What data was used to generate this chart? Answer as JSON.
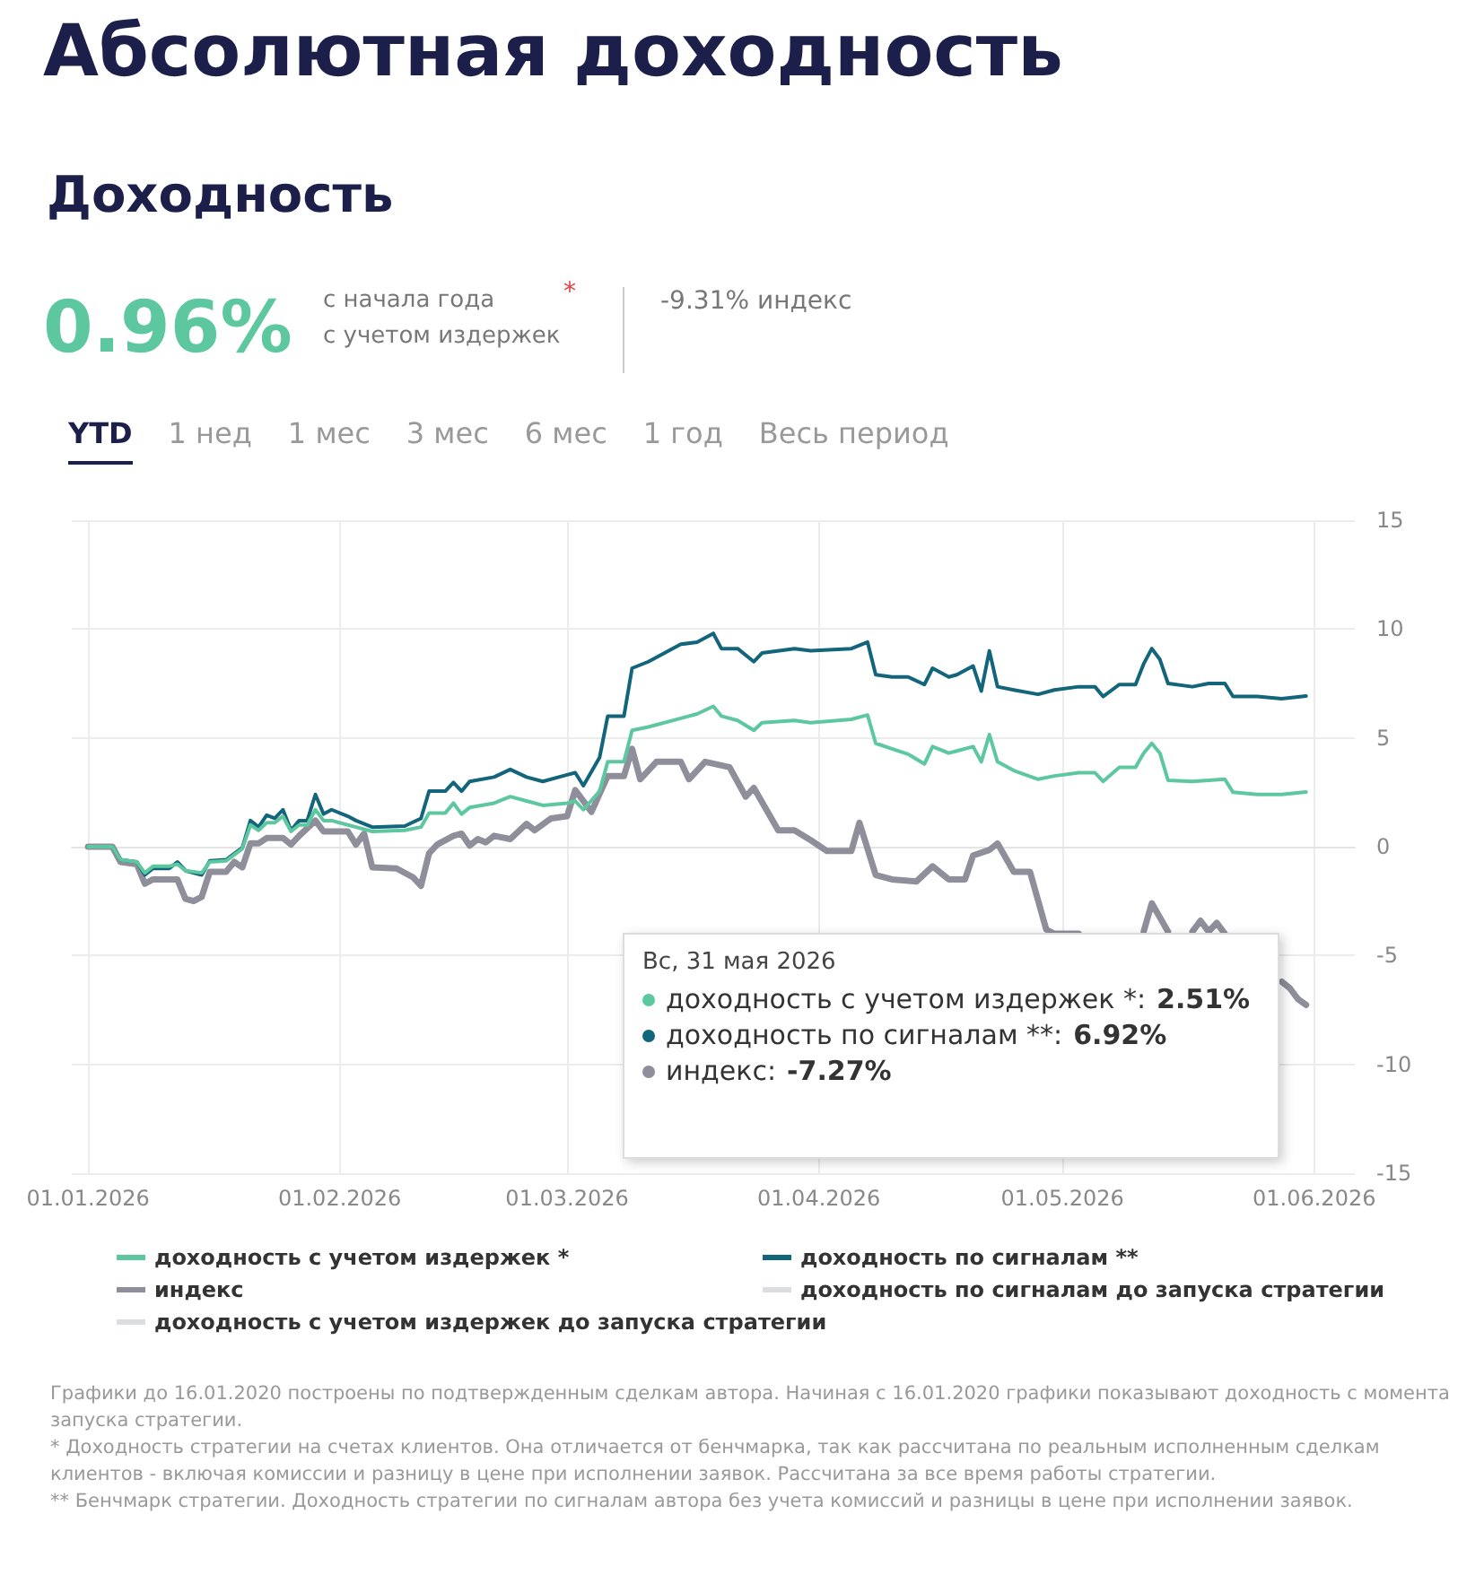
{
  "chart_data": {
    "type": "line",
    "title": "Абсолютная доходность",
    "subtitle": "Доходность",
    "annotations": [
      "0.96%",
      "с начала года",
      "с учетом издержек",
      "*",
      "-9.31% индекс",
      "YTD",
      "1 нед",
      "1 мес",
      "3 мес",
      "6 мес",
      "1 год",
      "Весь период",
      "Вс, 31 мая 2026",
      "доходность с учетом издержек *:",
      "2.51%",
      "доходность по сигналам **:",
      "6.92%",
      "индекс:",
      "-7.27%",
      "Графики до 16.01.2020 построены по подтвержденным сделкам автора. Начиная с 16.01.2020 графики показывают доходность с момента запуска стратегии.",
      "* Доходность стратегии на счетах клиентов. Она отличается от бенчмарка, так как рассчитана по реальным исполненным сделкам клиентов - включая комиссии и разницу в цене при исполнении заявок. Рассчитана за все время работы стратегии.",
      "** Бенчмарк стратегии. Доходность стратегии по сигналам автора без учета комиссий и разницы в цене при исполнении заявок."
    ],
    "x": [
      "2026-01-01",
      "2026-01-04",
      "2026-01-05",
      "2026-01-07",
      "2026-01-08",
      "2026-01-09",
      "2026-01-11",
      "2026-01-12",
      "2026-01-13",
      "2026-01-15",
      "2026-01-16",
      "2026-01-18",
      "2026-01-20",
      "2026-01-21",
      "2026-01-22",
      "2026-01-23",
      "2026-01-24",
      "2026-01-25",
      "2026-01-26",
      "2026-01-27",
      "2026-01-28",
      "2026-01-29",
      "2026-01-30",
      "2026-01-31",
      "2026-02-02",
      "2026-02-03",
      "2026-02-05",
      "2026-02-09",
      "2026-02-11",
      "2026-02-12",
      "2026-02-14",
      "2026-02-15",
      "2026-02-16",
      "2026-02-17",
      "2026-02-20",
      "2026-02-22",
      "2026-02-24",
      "2026-02-26",
      "2026-03-01",
      "2026-03-02",
      "2026-03-03",
      "2026-03-05",
      "2026-03-06",
      "2026-03-08",
      "2026-03-09",
      "2026-03-11",
      "2026-03-15",
      "2026-03-17",
      "2026-03-19",
      "2026-03-20",
      "2026-03-22",
      "2026-03-24",
      "2026-03-25",
      "2026-03-29",
      "2026-03-31",
      "2026-04-05",
      "2026-04-07",
      "2026-04-08",
      "2026-04-10",
      "2026-04-12",
      "2026-04-14",
      "2026-04-15",
      "2026-04-17",
      "2026-04-18",
      "2026-04-20",
      "2026-04-21",
      "2026-04-22",
      "2026-04-23",
      "2026-04-25",
      "2026-04-28",
      "2026-04-30",
      "2026-05-03",
      "2026-05-05",
      "2026-05-06",
      "2026-05-08",
      "2026-05-10",
      "2026-05-11",
      "2026-05-12",
      "2026-05-13",
      "2026-05-14",
      "2026-05-17",
      "2026-05-19",
      "2026-05-21",
      "2026-05-22",
      "2026-05-25",
      "2026-05-28",
      "2026-05-31"
    ],
    "series": [
      {
        "name": "доходность с учетом издержек *",
        "color": "#5dc89f",
        "values": [
          0,
          0,
          -0.6,
          -0.7,
          -1.2,
          -0.9,
          -0.9,
          -0.8,
          -1.1,
          -1.2,
          -0.7,
          -0.65,
          -0.1,
          1.0,
          0.75,
          1.1,
          1.1,
          1.4,
          0.7,
          1.0,
          1.0,
          1.7,
          1.2,
          1.2,
          1.0,
          0.9,
          0.7,
          0.75,
          0.9,
          1.55,
          1.55,
          2.0,
          1.5,
          1.8,
          2.0,
          2.3,
          2.1,
          1.9,
          2.0,
          2.1,
          1.7,
          2.55,
          3.9,
          3.9,
          5.35,
          5.5,
          5.9,
          6.1,
          6.45,
          6.0,
          5.8,
          5.35,
          5.7,
          5.8,
          5.7,
          5.85,
          6.05,
          4.75,
          4.5,
          4.25,
          3.8,
          4.6,
          4.3,
          4.4,
          4.6,
          3.9,
          5.15,
          3.9,
          3.5,
          3.1,
          3.25,
          3.4,
          3.4,
          3.0,
          3.65,
          3.65,
          4.3,
          4.75,
          4.3,
          3.05,
          3.0,
          3.05,
          3.1,
          2.5,
          2.4,
          2.4,
          2.51
        ]
      },
      {
        "name": "доходность по сигналам **",
        "color": "#12657a",
        "values": [
          0,
          0,
          -0.6,
          -0.7,
          -1.3,
          -1.0,
          -1.0,
          -0.7,
          -1.1,
          -1.3,
          -0.65,
          -0.6,
          -0.05,
          1.2,
          0.9,
          1.45,
          1.3,
          1.7,
          0.75,
          1.2,
          1.2,
          2.4,
          1.5,
          1.7,
          1.4,
          1.2,
          0.9,
          0.95,
          1.3,
          2.55,
          2.55,
          2.95,
          2.55,
          3.0,
          3.2,
          3.55,
          3.2,
          3.0,
          3.3,
          3.4,
          2.8,
          4.1,
          6.0,
          6.0,
          8.2,
          8.5,
          9.3,
          9.4,
          9.8,
          9.1,
          9.1,
          8.5,
          8.9,
          9.1,
          9.0,
          9.1,
          9.4,
          7.9,
          7.8,
          7.8,
          7.45,
          8.2,
          7.8,
          7.9,
          8.3,
          7.15,
          9.0,
          7.35,
          7.2,
          7.0,
          7.2,
          7.35,
          7.35,
          6.9,
          7.45,
          7.45,
          8.4,
          9.1,
          8.6,
          7.5,
          7.35,
          7.5,
          7.5,
          6.9,
          6.9,
          6.8,
          6.92
        ]
      },
      {
        "name": "индекс",
        "color": "#8f8f9c",
        "x": [
          "2026-01-01",
          "2026-01-04",
          "2026-01-05",
          "2026-01-07",
          "2026-01-08",
          "2026-01-09",
          "2026-01-12",
          "2026-01-13",
          "2026-01-14",
          "2026-01-15",
          "2026-01-16",
          "2026-01-18",
          "2026-01-19",
          "2026-01-20",
          "2026-01-21",
          "2026-01-22",
          "2026-01-23",
          "2026-01-25",
          "2026-01-26",
          "2026-01-27",
          "2026-01-29",
          "2026-01-30",
          "2026-02-02",
          "2026-02-03",
          "2026-02-04",
          "2026-02-05",
          "2026-02-08",
          "2026-02-10",
          "2026-02-11",
          "2026-02-12",
          "2026-02-13",
          "2026-02-15",
          "2026-02-16",
          "2026-02-17",
          "2026-02-18",
          "2026-02-19",
          "2026-02-20",
          "2026-02-22",
          "2026-02-24",
          "2026-02-25",
          "2026-02-27",
          "2026-03-01",
          "2026-03-02",
          "2026-03-04",
          "2026-03-06",
          "2026-03-08",
          "2026-03-09",
          "2026-03-10",
          "2026-03-12",
          "2026-03-15",
          "2026-03-16",
          "2026-03-18",
          "2026-03-21",
          "2026-03-23",
          "2026-03-24",
          "2026-03-27",
          "2026-03-29",
          "2026-03-31",
          "2026-04-02",
          "2026-04-05",
          "2026-04-06",
          "2026-04-08",
          "2026-04-10",
          "2026-04-13",
          "2026-04-15",
          "2026-04-17",
          "2026-04-19",
          "2026-04-20",
          "2026-04-22",
          "2026-04-23",
          "2026-04-25",
          "2026-04-27",
          "2026-04-29",
          "2026-04-30",
          "2026-05-03",
          "2026-05-05",
          "2026-05-10",
          "2026-05-11",
          "2026-05-12",
          "2026-05-14",
          "2026-05-15",
          "2026-05-17",
          "2026-05-18",
          "2026-05-19",
          "2026-05-20",
          "2026-05-21",
          "2026-05-22",
          "2026-05-27",
          "2026-05-28",
          "2026-05-29",
          "2026-05-30",
          "2026-05-31"
        ],
        "values": [
          0,
          0,
          -0.7,
          -0.8,
          -1.7,
          -1.5,
          -1.5,
          -2.4,
          -2.5,
          -2.3,
          -1.15,
          -1.15,
          -0.7,
          -0.95,
          0.15,
          0.15,
          0.4,
          0.4,
          0.1,
          0.5,
          1.2,
          0.7,
          0.7,
          0.1,
          0.6,
          -0.95,
          -1.0,
          -1.4,
          -1.8,
          -0.3,
          0.1,
          0.5,
          0.6,
          0.05,
          0.35,
          0.2,
          0.5,
          0.35,
          1.05,
          0.75,
          1.3,
          1.4,
          2.6,
          1.6,
          3.25,
          3.25,
          4.5,
          3.1,
          3.9,
          3.9,
          3.1,
          3.9,
          3.65,
          2.3,
          2.7,
          0.75,
          0.75,
          0.3,
          -0.2,
          -0.2,
          1.1,
          -1.3,
          -1.5,
          -1.6,
          -0.9,
          -1.5,
          -1.5,
          -0.4,
          -0.15,
          0.15,
          -1.15,
          -1.15,
          -3.8,
          -4.0,
          -4.0,
          null,
          null,
          -3.9,
          -2.6,
          -3.9,
          null,
          -3.9,
          -3.4,
          -3.9,
          -3.5,
          -4.0,
          null,
          null,
          -6.2,
          -6.5,
          -7.0,
          -7.27
        ]
      },
      {
        "name": "доходность с учетом издержек до запуска стратегии",
        "color": "#dcdde0",
        "values": [
          null,
          null,
          null,
          null,
          null,
          null,
          null,
          null,
          null,
          null,
          null,
          null,
          null,
          null,
          null,
          null,
          null,
          null,
          null,
          null,
          null,
          null,
          null,
          null,
          null,
          null,
          null,
          null,
          null,
          null,
          null,
          null,
          null,
          null,
          null,
          null,
          null,
          null,
          null,
          null,
          null,
          null,
          null,
          null,
          null,
          null,
          null,
          null,
          null,
          null,
          null,
          null,
          null,
          null,
          null,
          null,
          null,
          null,
          null,
          null,
          null,
          null,
          null,
          null,
          null,
          null,
          null,
          null,
          null,
          null,
          null,
          null,
          null,
          null,
          null,
          null,
          null,
          null,
          null,
          null,
          null,
          null,
          null,
          null,
          null,
          null,
          null
        ]
      },
      {
        "name": "доходность по сигналам до запуска стратегии",
        "color": "#dcdde0",
        "values": [
          null,
          null,
          null,
          null,
          null,
          null,
          null,
          null,
          null,
          null,
          null,
          null,
          null,
          null,
          null,
          null,
          null,
          null,
          null,
          null,
          null,
          null,
          null,
          null,
          null,
          null,
          null,
          null,
          null,
          null,
          null,
          null,
          null,
          null,
          null,
          null,
          null,
          null,
          null,
          null,
          null,
          null,
          null,
          null,
          null,
          null,
          null,
          null,
          null,
          null,
          null,
          null,
          null,
          null,
          null,
          null,
          null,
          null,
          null,
          null,
          null,
          null,
          null,
          null,
          null,
          null,
          null,
          null,
          null,
          null,
          null,
          null,
          null,
          null,
          null,
          null,
          null,
          null,
          null,
          null,
          null,
          null,
          null,
          null,
          null,
          null,
          null
        ]
      }
    ],
    "xlim": [
      "2025-12-30",
      "2026-06-06"
    ],
    "xticks": [
      {
        "value": "2026-01-01",
        "label": "01.01.2026"
      },
      {
        "value": "2026-02-01",
        "label": "01.02.2026"
      },
      {
        "value": "2026-03-01",
        "label": "01.03.2026"
      },
      {
        "value": "2026-04-01",
        "label": "01.04.2026"
      },
      {
        "value": "2026-05-01",
        "label": "01.05.2026"
      },
      {
        "value": "2026-06-01",
        "label": "01.06.2026"
      }
    ],
    "ylim": [
      -15,
      15
    ],
    "yticks": [
      -15,
      -10,
      -5,
      0,
      5,
      10,
      15
    ],
    "grid": true,
    "legend": "bottom",
    "line_style": "solid"
  }
}
